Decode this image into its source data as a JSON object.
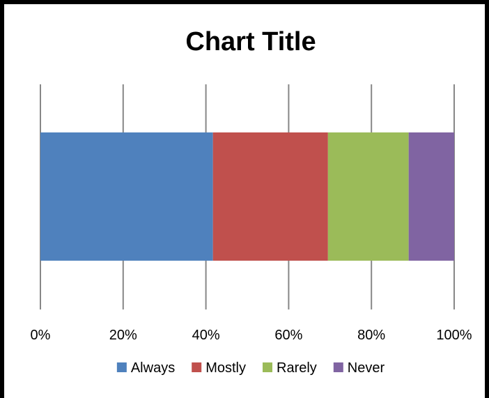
{
  "chart_data": {
    "type": "bar",
    "orientation": "horizontal",
    "stacked": "percent",
    "title": "Chart Title",
    "xlabel": "",
    "ylabel": "",
    "xlim": [
      0,
      100
    ],
    "ticks": [
      "0%",
      "20%",
      "40%",
      "60%",
      "80%",
      "100%"
    ],
    "grid": true,
    "legend_position": "bottom",
    "series": [
      {
        "name": "Always",
        "value": 41.7,
        "color": "#4F81BD"
      },
      {
        "name": "Mostly",
        "value": 27.8,
        "color": "#C0504D"
      },
      {
        "name": "Rarely",
        "value": 19.5,
        "color": "#9BBB59"
      },
      {
        "name": "Never",
        "value": 11.0,
        "color": "#8064A2"
      }
    ]
  }
}
